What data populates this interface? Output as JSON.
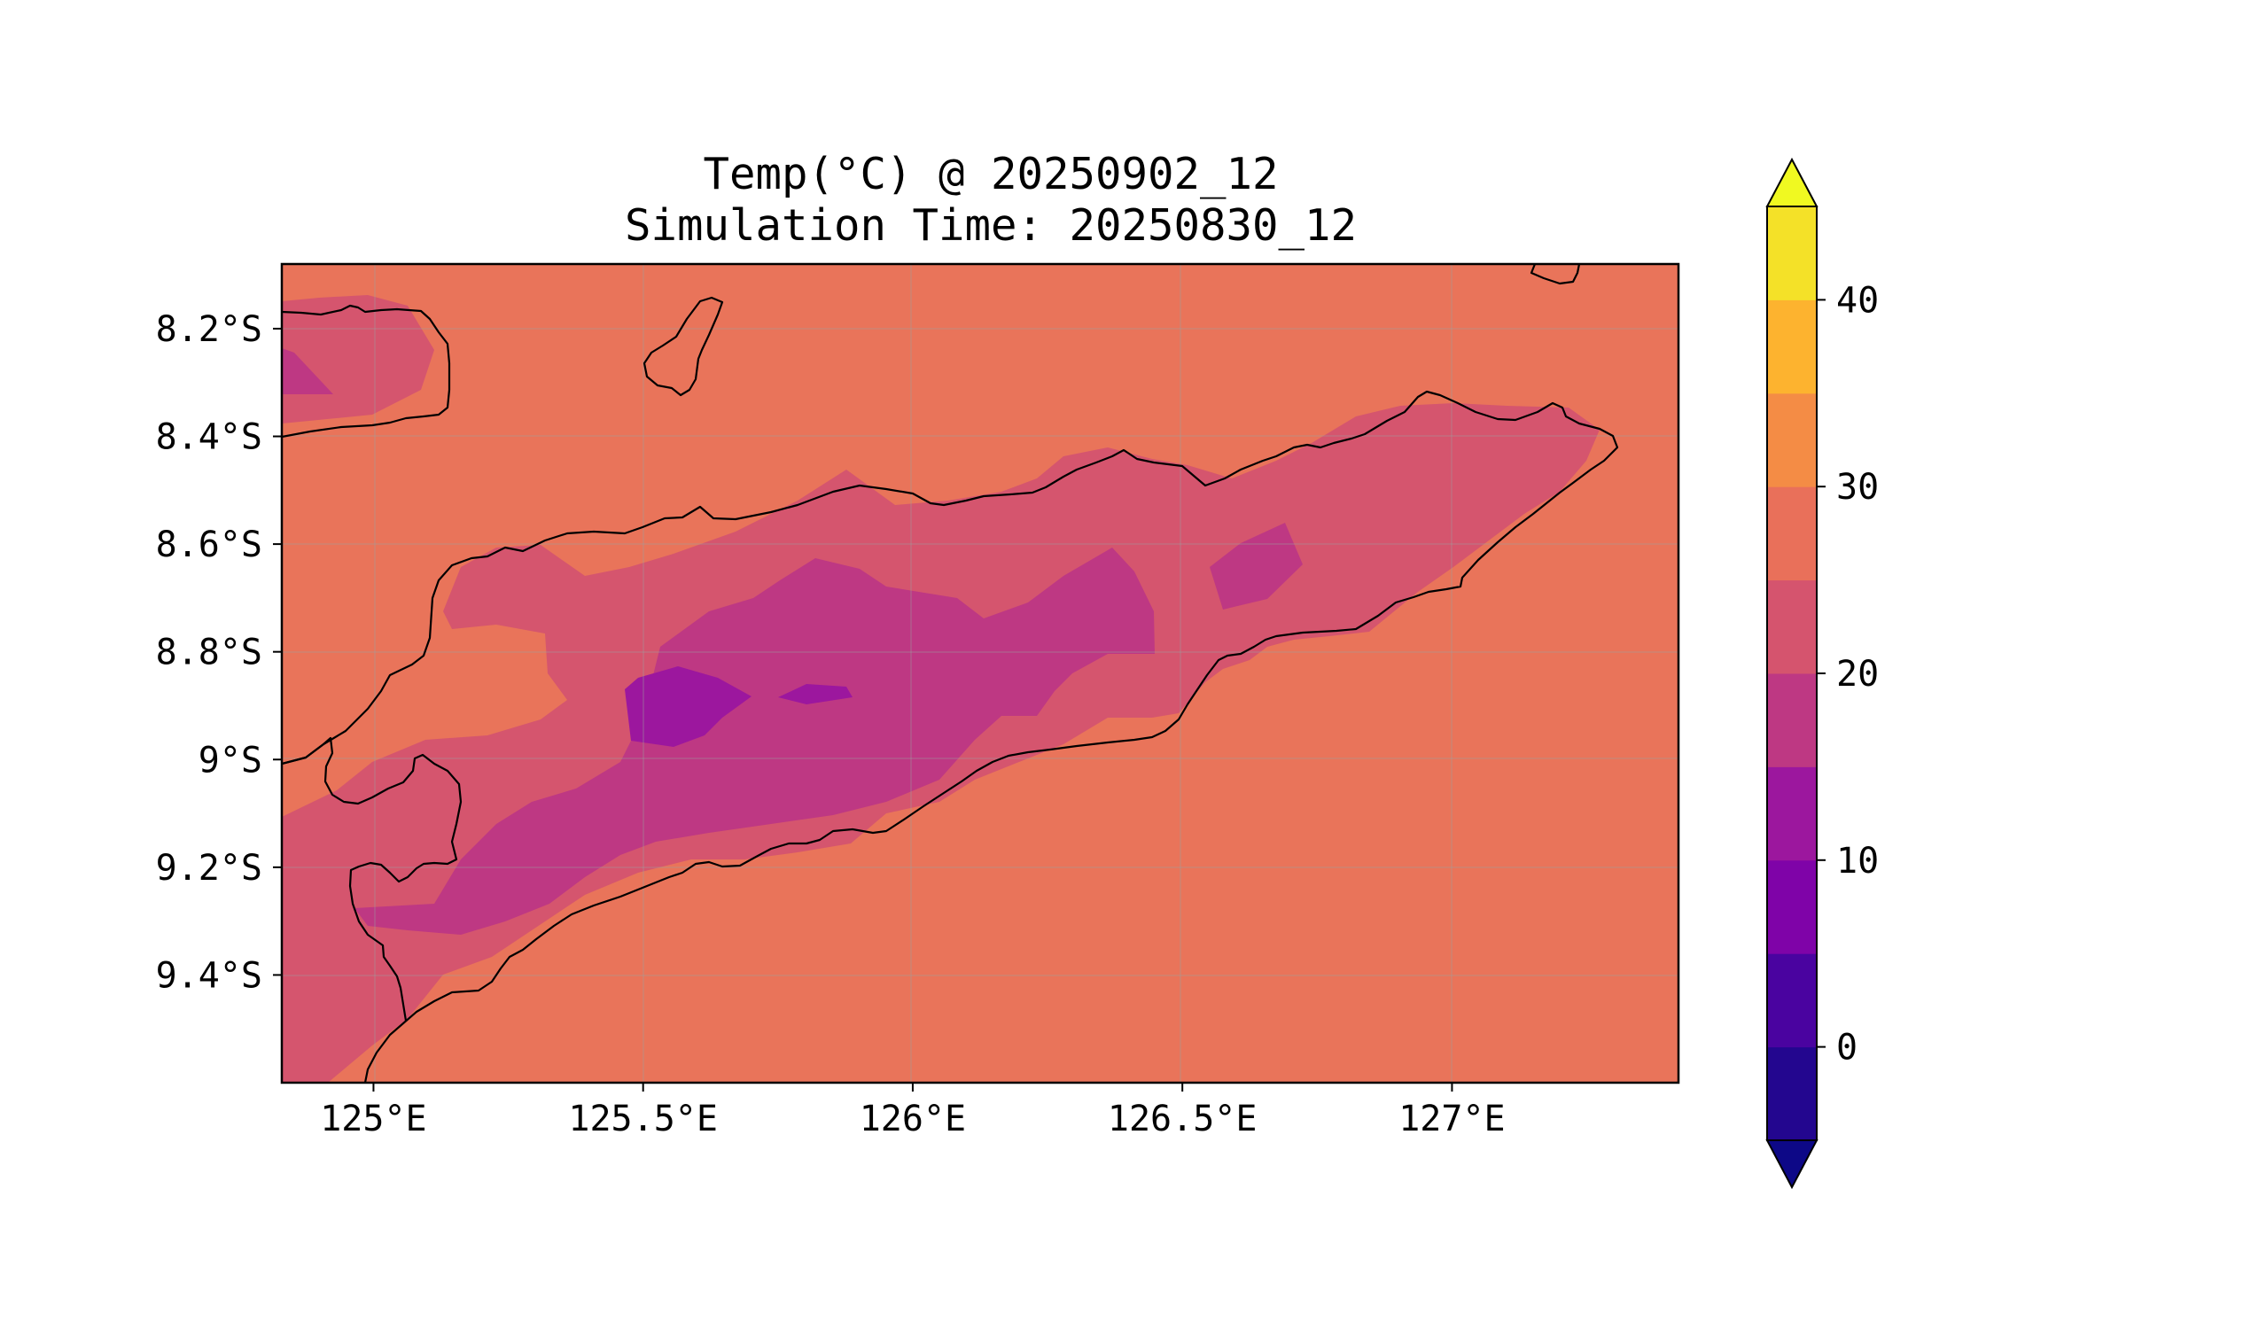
{
  "title": {
    "line1": "Temp(°C) @ 20250902_12",
    "line2": "Simulation Time: 20250830_12"
  },
  "map": {
    "region": "Timor",
    "lon_range": [
      124.83,
      127.42
    ],
    "lat_range": [
      -9.6,
      -8.08
    ],
    "x_ticks": [
      {
        "value": 125.0,
        "label": "125°E"
      },
      {
        "value": 125.5,
        "label": "125.5°E"
      },
      {
        "value": 126.0,
        "label": "126°E"
      },
      {
        "value": 126.5,
        "label": "126.5°E"
      },
      {
        "value": 127.0,
        "label": "127°E"
      }
    ],
    "y_ticks": [
      {
        "value": -8.2,
        "label": "8.2°S"
      },
      {
        "value": -8.4,
        "label": "8.4°S"
      },
      {
        "value": -8.6,
        "label": "8.6°S"
      },
      {
        "value": -8.8,
        "label": "8.8°S"
      },
      {
        "value": -9.0,
        "label": "9°S"
      },
      {
        "value": -9.2,
        "label": "9.2°S"
      },
      {
        "value": -9.4,
        "label": "9.4°S"
      }
    ],
    "gridlines": true,
    "background_field_value_range": "25–30 °C"
  },
  "colorbar": {
    "orientation": "vertical",
    "extend": "both",
    "levels": [
      -5,
      0,
      5,
      10,
      15,
      20,
      25,
      30,
      35,
      40,
      45
    ],
    "colors": [
      "#23068f",
      "#4a03a0",
      "#7f03a8",
      "#9c179e",
      "#be3883",
      "#d5546e",
      "#e9705a",
      "#f48c45",
      "#fdb32f",
      "#f4e128"
    ],
    "under_color": "#0d0887",
    "over_color": "#f0f921",
    "ticks": [
      {
        "value": 0,
        "label": "0"
      },
      {
        "value": 10,
        "label": "10"
      },
      {
        "value": 20,
        "label": "20"
      },
      {
        "value": 30,
        "label": "30"
      },
      {
        "value": 40,
        "label": "40"
      }
    ]
  },
  "chart_data": {
    "type": "heatmap",
    "title": "Temp(°C) @ 20250902_12",
    "subtitle": "Simulation Time: 20250830_12",
    "xlabel": "",
    "ylabel": "",
    "x_range": [
      124.83,
      127.42
    ],
    "y_range": [
      -9.6,
      -8.08
    ],
    "contour_regions": [
      {
        "range": [
          25,
          30
        ],
        "area": "ocean and most of domain"
      },
      {
        "range": [
          20,
          25
        ],
        "area": "central mountain spine of Timor; Wetar/Alor fringe at top-left"
      },
      {
        "range": [
          15,
          20
        ],
        "area": "central highlands around 125.6–126.5°E; southwest highlands near 125.2°E 9.2°S; small patch near 126.6°E 8.65°S"
      },
      {
        "range": [
          10,
          15
        ],
        "area": "highest terrain near 125.55–125.85°E, 8.85–8.95°S"
      }
    ]
  }
}
